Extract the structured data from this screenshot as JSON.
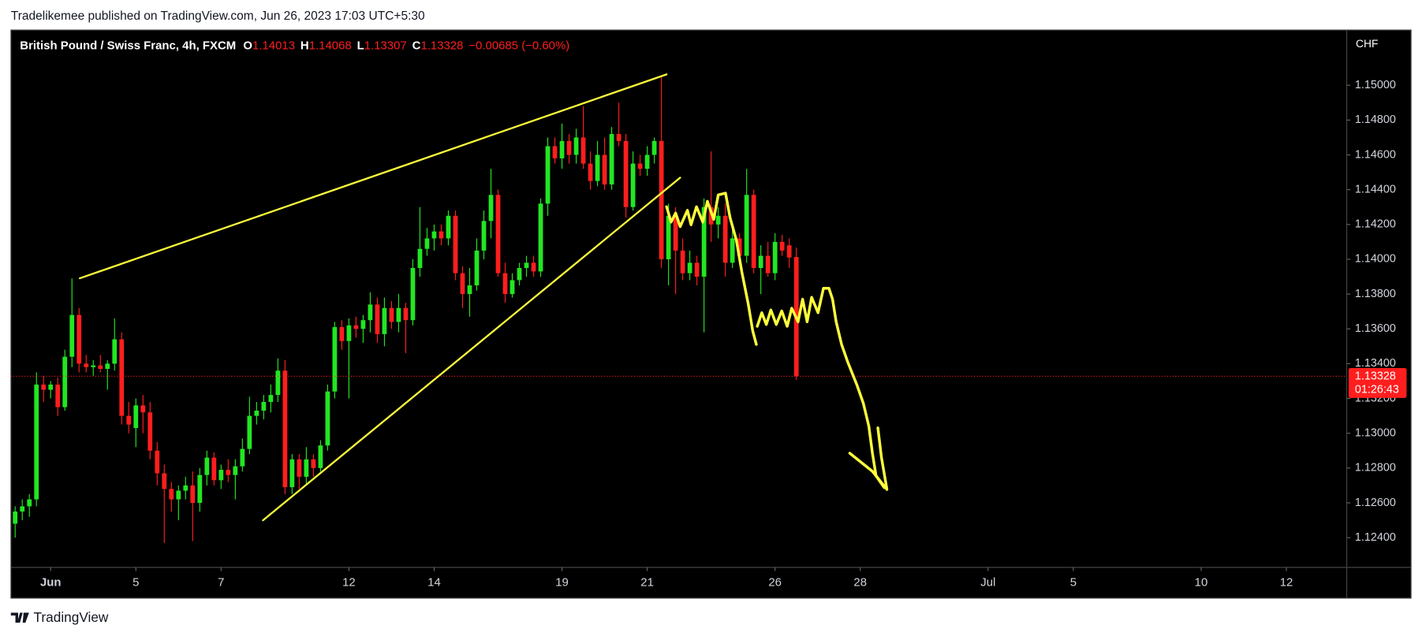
{
  "publisher": "Tradelikemee published on TradingView.com, Jun 26, 2023 17:03 UTC+5:30",
  "brand": "TradingView",
  "chart_data": {
    "type": "candlestick",
    "title": "British Pound / Swiss Franc, 4h, FXCM",
    "ohlc_labels": [
      "O",
      "H",
      "L",
      "C"
    ],
    "change": "−0.00685 (−0.60%)",
    "currency": "CHF",
    "countdown": "01:26:43",
    "up_color": "#22e622",
    "down_color": "#ff1e1e",
    "open": [
      1.1248,
      1.1255,
      1.1258,
      1.1262,
      1.1328,
      1.1325,
      1.1328,
      1.1315,
      1.1344,
      1.1368,
      1.134,
      1.1338,
      1.1339,
      1.1337,
      1.134,
      1.1354,
      1.131,
      1.1303,
      1.1316,
      1.1312,
      1.129,
      1.1277,
      1.1268,
      1.1262,
      1.1267,
      1.127,
      1.126,
      1.1276,
      1.1286,
      1.1273,
      1.1279,
      1.1276,
      1.1281,
      1.1291,
      1.131,
      1.1313,
      1.1318,
      1.1322,
      1.1336,
      1.1269,
      1.1285,
      1.1275,
      1.1285,
      1.128,
      1.1293,
      1.1324,
      1.1361,
      1.1353,
      1.1362,
      1.136,
      1.1365,
      1.1374,
      1.1357,
      1.1372,
      1.1364,
      1.1372,
      1.1365,
      1.1395,
      1.1406,
      1.1412,
      1.1416,
      1.1412,
      1.1425,
      1.1392,
      1.138,
      1.1385,
      1.1405,
      1.1422,
      1.1437,
      1.1392,
      1.138,
      1.1388,
      1.1395,
      1.1398,
      1.1393,
      1.1432,
      1.1465,
      1.1458,
      1.1468,
      1.146,
      1.147,
      1.1455,
      1.1445,
      1.146,
      1.1443,
      1.1472,
      1.1468,
      1.143,
      1.1455,
      1.1452,
      1.146,
      1.1468,
      1.14,
      1.1425,
      1.1405,
      1.1392,
      1.1398,
      1.139,
      1.143,
      1.142,
      1.1425,
      1.1398,
      1.1412,
      1.1402,
      1.1437,
      1.1395,
      1.1402,
      1.1392,
      1.141,
      1.1408,
      1.14013
    ],
    "high": [
      1.1258,
      1.1262,
      1.1265,
      1.1335,
      1.1333,
      1.133,
      1.1332,
      1.1348,
      1.1389,
      1.1372,
      1.1345,
      1.1342,
      1.1345,
      1.1342,
      1.1366,
      1.1358,
      1.1318,
      1.132,
      1.1322,
      1.1318,
      1.1295,
      1.1282,
      1.1272,
      1.127,
      1.1275,
      1.1278,
      1.128,
      1.129,
      1.1289,
      1.1282,
      1.1285,
      1.1285,
      1.1297,
      1.1321,
      1.1318,
      1.1322,
      1.1328,
      1.1343,
      1.1342,
      1.1288,
      1.1288,
      1.1292,
      1.1288,
      1.1296,
      1.1328,
      1.1364,
      1.1365,
      1.1366,
      1.1367,
      1.1368,
      1.1381,
      1.1378,
      1.1378,
      1.1376,
      1.138,
      1.1375,
      1.14,
      1.143,
      1.1418,
      1.142,
      1.142,
      1.1428,
      1.1428,
      1.1396,
      1.1395,
      1.1412,
      1.1428,
      1.1452,
      1.144,
      1.1398,
      1.1392,
      1.1398,
      1.1402,
      1.1402,
      1.1435,
      1.147,
      1.147,
      1.1478,
      1.1472,
      1.1475,
      1.1488,
      1.1462,
      1.1468,
      1.147,
      1.1476,
      1.149,
      1.1472,
      1.1462,
      1.146,
      1.1465,
      1.147,
      1.1505,
      1.1432,
      1.143,
      1.1412,
      1.1405,
      1.1402,
      1.1435,
      1.1462,
      1.143,
      1.1432,
      1.142,
      1.1415,
      1.1452,
      1.144,
      1.1408,
      1.141,
      1.1415,
      1.1414,
      1.1412,
      1.14068
    ],
    "low": [
      1.124,
      1.125,
      1.1252,
      1.1258,
      1.1318,
      1.132,
      1.131,
      1.1313,
      1.1338,
      1.1335,
      1.1335,
      1.1333,
      1.1335,
      1.1325,
      1.1336,
      1.1305,
      1.13,
      1.1292,
      1.13,
      1.1285,
      1.127,
      1.1237,
      1.1255,
      1.125,
      1.1262,
      1.1238,
      1.1255,
      1.127,
      1.127,
      1.1268,
      1.1272,
      1.1262,
      1.1278,
      1.1288,
      1.1305,
      1.1308,
      1.1312,
      1.1318,
      1.1265,
      1.1265,
      1.1268,
      1.127,
      1.1275,
      1.1278,
      1.129,
      1.132,
      1.1348,
      1.132,
      1.1355,
      1.1352,
      1.1358,
      1.1352,
      1.135,
      1.136,
      1.1358,
      1.1346,
      1.1362,
      1.139,
      1.1402,
      1.1405,
      1.1408,
      1.1408,
      1.1388,
      1.1372,
      1.1367,
      1.1382,
      1.14,
      1.1412,
      1.139,
      1.1375,
      1.1378,
      1.1385,
      1.139,
      1.139,
      1.139,
      1.1425,
      1.1455,
      1.1452,
      1.1455,
      1.1455,
      1.1452,
      1.144,
      1.1442,
      1.144,
      1.144,
      1.1465,
      1.1424,
      1.1428,
      1.1448,
      1.1448,
      1.1455,
      1.1395,
      1.1385,
      1.138,
      1.1388,
      1.1388,
      1.1385,
      1.1358,
      1.141,
      1.1412,
      1.139,
      1.1395,
      1.1398,
      1.1398,
      1.1392,
      1.138,
      1.139,
      1.1388,
      1.1402,
      1.1395,
      1.13307
    ],
    "close": [
      1.1255,
      1.1258,
      1.1262,
      1.1328,
      1.1325,
      1.1328,
      1.1315,
      1.1344,
      1.1368,
      1.134,
      1.1338,
      1.1339,
      1.1337,
      1.134,
      1.1354,
      1.131,
      1.1305,
      1.1316,
      1.1312,
      1.129,
      1.1277,
      1.1268,
      1.1262,
      1.1267,
      1.127,
      1.126,
      1.1276,
      1.1286,
      1.1273,
      1.1279,
      1.1276,
      1.1281,
      1.1291,
      1.131,
      1.1313,
      1.1318,
      1.1322,
      1.1336,
      1.1269,
      1.1285,
      1.1275,
      1.1285,
      1.128,
      1.1293,
      1.1324,
      1.1361,
      1.1353,
      1.1362,
      1.136,
      1.1365,
      1.1374,
      1.1357,
      1.1372,
      1.1364,
      1.1372,
      1.1365,
      1.1395,
      1.1406,
      1.1412,
      1.1416,
      1.1412,
      1.1425,
      1.1392,
      1.138,
      1.1385,
      1.1405,
      1.1422,
      1.1437,
      1.1392,
      1.138,
      1.1388,
      1.1395,
      1.1398,
      1.1393,
      1.1432,
      1.1465,
      1.1458,
      1.1468,
      1.146,
      1.147,
      1.1455,
      1.1445,
      1.146,
      1.1443,
      1.1472,
      1.1468,
      1.143,
      1.1455,
      1.1452,
      1.146,
      1.1468,
      1.14,
      1.1425,
      1.1405,
      1.1392,
      1.1398,
      1.139,
      1.143,
      1.142,
      1.1425,
      1.1398,
      1.1412,
      1.1402,
      1.1437,
      1.1395,
      1.1402,
      1.1392,
      1.141,
      1.1405,
      1.1401,
      1.13328
    ],
    "xlim": [
      -0.6,
      187.5
    ],
    "xticks": [
      {
        "value": 5,
        "label": "Jun"
      },
      {
        "value": 17,
        "label": "5"
      },
      {
        "value": 29,
        "label": "7"
      },
      {
        "value": 47,
        "label": "12"
      },
      {
        "value": 59,
        "label": "14"
      },
      {
        "value": 77,
        "label": "19"
      },
      {
        "value": 89,
        "label": "21"
      },
      {
        "value": 107,
        "label": "26"
      },
      {
        "value": 119,
        "label": "28"
      },
      {
        "value": 137,
        "label": "Jul"
      },
      {
        "value": 149,
        "label": "5"
      },
      {
        "value": 167,
        "label": "10"
      },
      {
        "value": 179,
        "label": "12"
      }
    ],
    "ylim": [
      1.12229,
      1.15318
    ],
    "yticks": [
      {
        "value": 1.124,
        "label": "1.12400"
      },
      {
        "value": 1.126,
        "label": "1.12600"
      },
      {
        "value": 1.128,
        "label": "1.12800"
      },
      {
        "value": 1.13,
        "label": "1.13000"
      },
      {
        "value": 1.132,
        "label": "1.13200"
      },
      {
        "value": 1.134,
        "label": "1.13400"
      },
      {
        "value": 1.136,
        "label": "1.13600"
      },
      {
        "value": 1.138,
        "label": "1.13800"
      },
      {
        "value": 1.14,
        "label": "1.14000"
      },
      {
        "value": 1.142,
        "label": "1.14200"
      },
      {
        "value": 1.144,
        "label": "1.14400"
      },
      {
        "value": 1.146,
        "label": "1.14600"
      },
      {
        "value": 1.148,
        "label": "1.14800"
      },
      {
        "value": 1.15,
        "label": "1.15000"
      }
    ]
  }
}
